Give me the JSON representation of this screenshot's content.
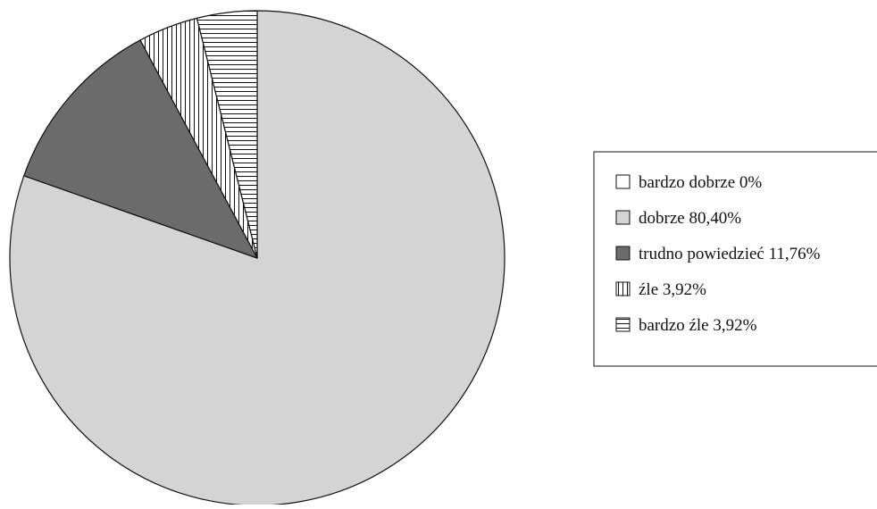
{
  "chart_data": {
    "type": "pie",
    "start_angle_deg": 90,
    "direction": "clockwise",
    "slices": [
      {
        "label": "bardzo dobrze 0%",
        "value": 0,
        "fill": "#ffffff",
        "pattern": "none"
      },
      {
        "label": "dobrze 80,40%",
        "value": 80.4,
        "fill": "#d4d4d4",
        "pattern": "none"
      },
      {
        "label": "trudno powiedzieć 11,76%",
        "value": 11.76,
        "fill": "#6b6b6b",
        "pattern": "none"
      },
      {
        "label": "źle 3,92%",
        "value": 3.92,
        "fill": "#ffffff",
        "pattern": "vertical-lines"
      },
      {
        "label": "bardzo źle 3,92%",
        "value": 3.92,
        "fill": "#ffffff",
        "pattern": "horizontal-lines"
      }
    ],
    "legend_position": "right"
  }
}
